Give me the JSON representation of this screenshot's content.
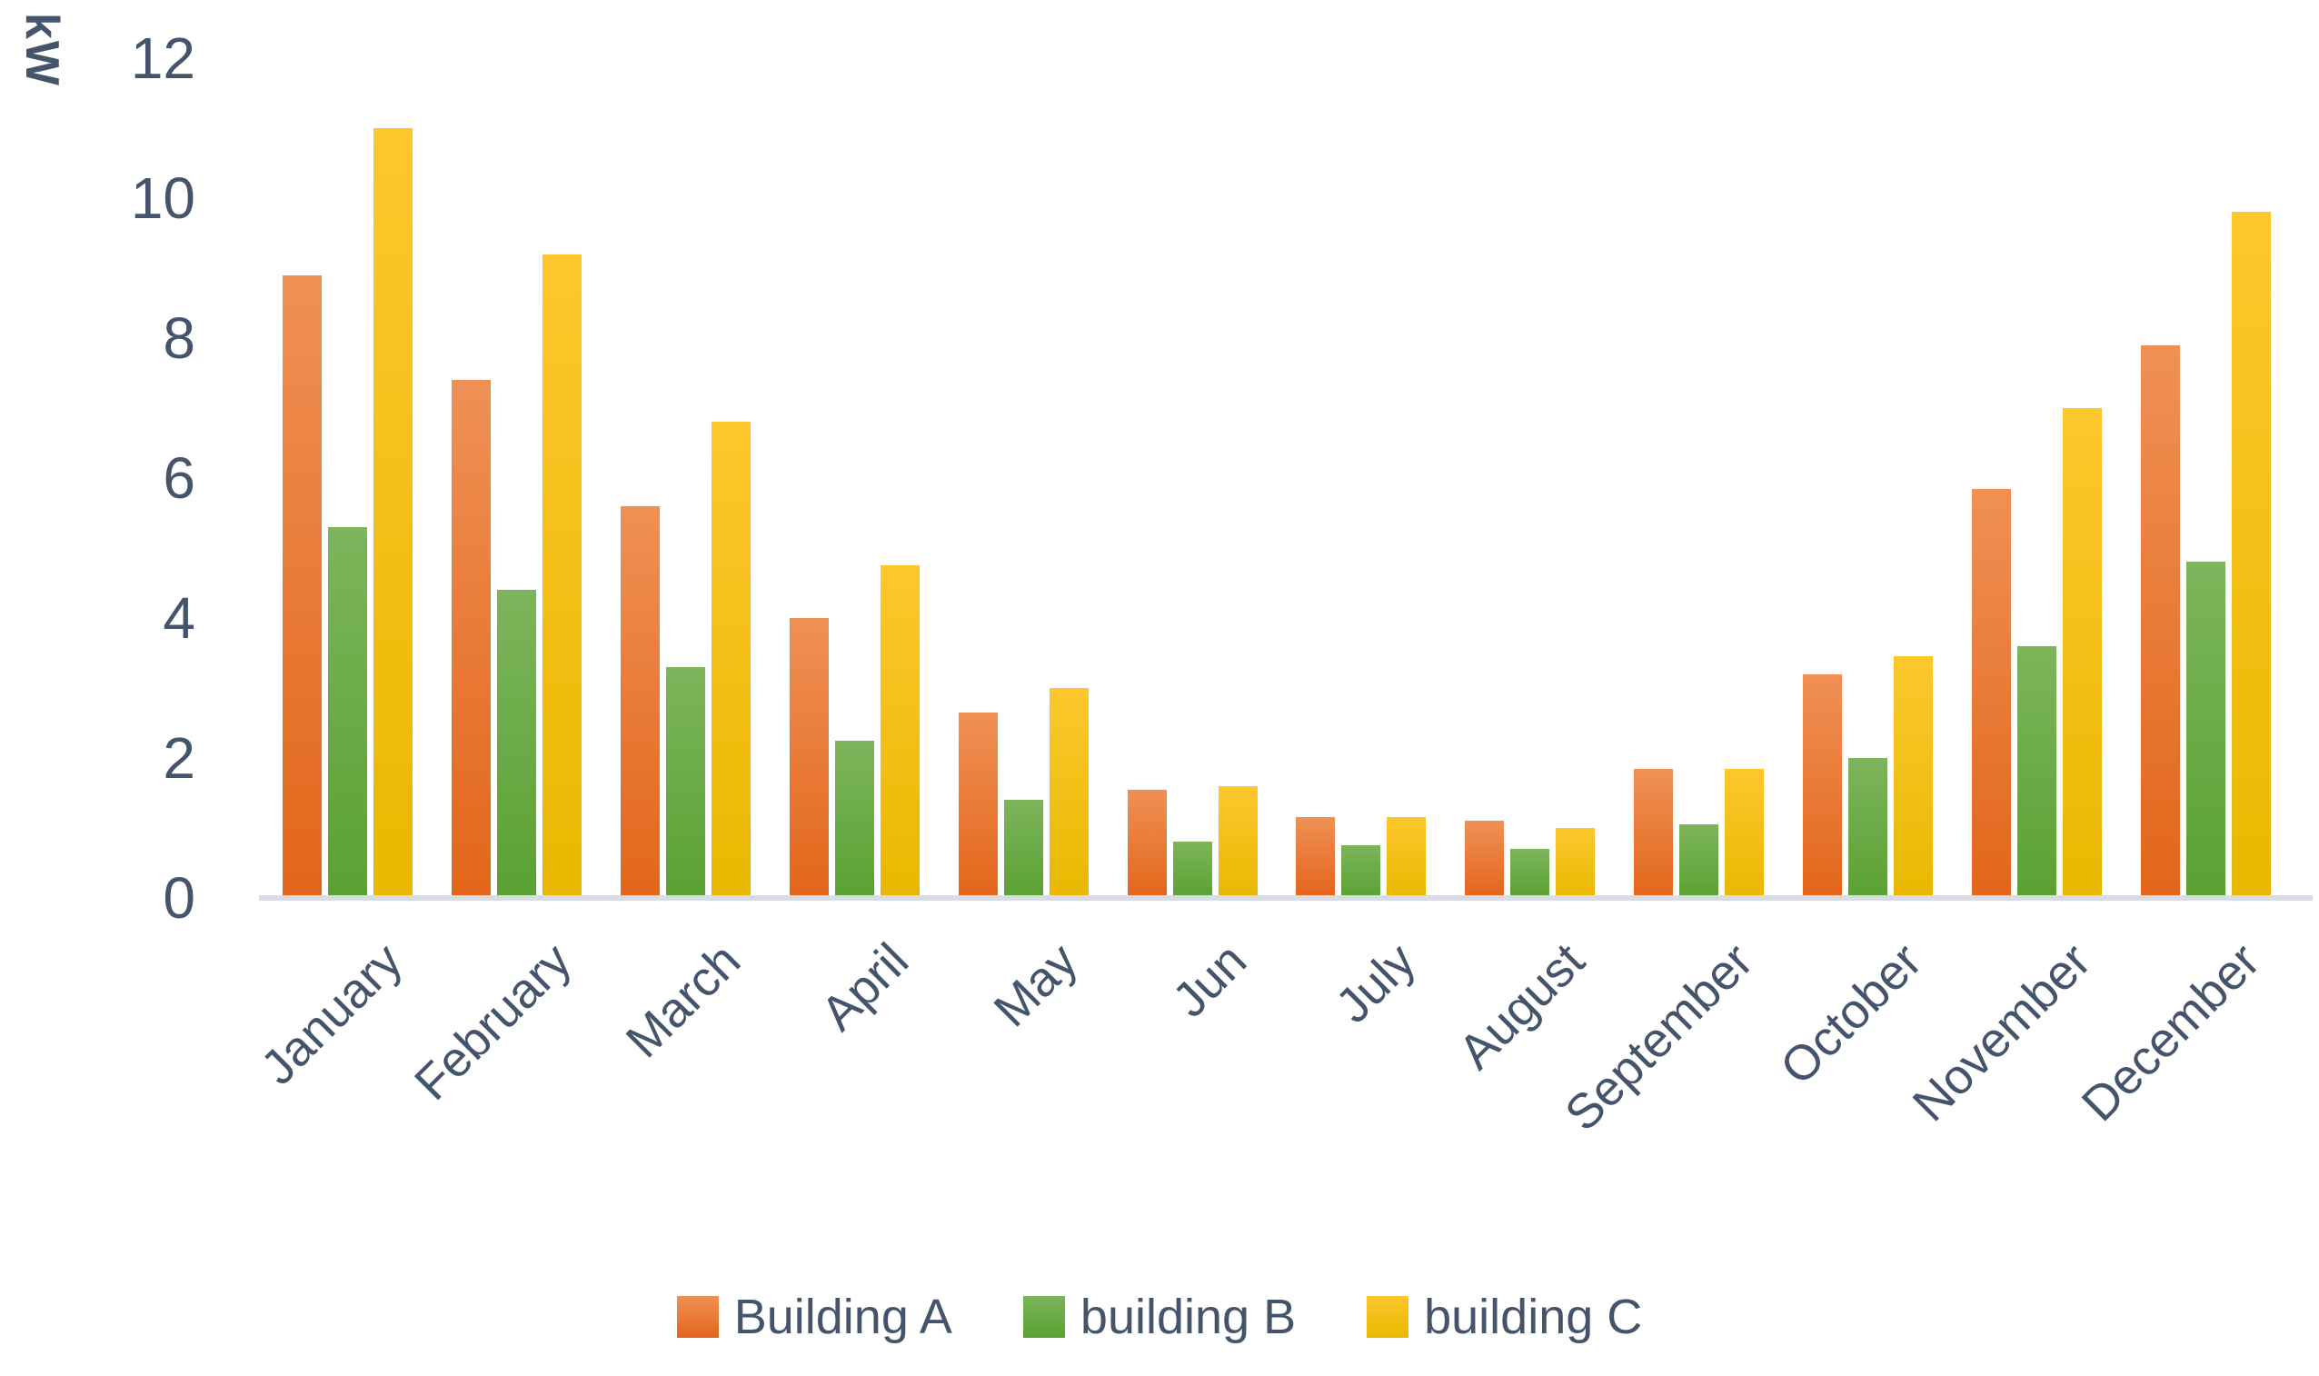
{
  "chart_data": {
    "type": "bar",
    "title": "",
    "ylabel": "kW",
    "xlabel": "",
    "ylim": [
      0,
      12
    ],
    "yticks": [
      12,
      10,
      8,
      6,
      4,
      2,
      0
    ],
    "grid": false,
    "legend_position": "bottom",
    "categories": [
      "January",
      "February",
      "March",
      "April",
      "May",
      "Jun",
      "July",
      "August",
      "September",
      "October",
      "November",
      "December"
    ],
    "series": [
      {
        "name": "Building A",
        "color_top": "#F09055",
        "color_bottom": "#E2661A",
        "values": [
          8.9,
          7.4,
          5.6,
          4.0,
          2.65,
          1.55,
          1.15,
          1.1,
          1.85,
          3.2,
          5.85,
          7.9
        ]
      },
      {
        "name": "building B",
        "color_top": "#7CB55C",
        "color_bottom": "#5BA132",
        "values": [
          5.3,
          4.4,
          3.3,
          2.25,
          1.4,
          0.8,
          0.75,
          0.7,
          1.05,
          2.0,
          3.6,
          4.8
        ]
      },
      {
        "name": "building C",
        "color_top": "#FEC72E",
        "color_bottom": "#E9B800",
        "values": [
          11.0,
          9.2,
          6.8,
          4.75,
          3.0,
          1.6,
          1.15,
          1.0,
          1.85,
          3.45,
          7.0,
          9.8
        ]
      }
    ],
    "axis_text_color": "#44546A",
    "baseline_color": "#D8DCE5",
    "background_color": "#FFFFFF"
  }
}
